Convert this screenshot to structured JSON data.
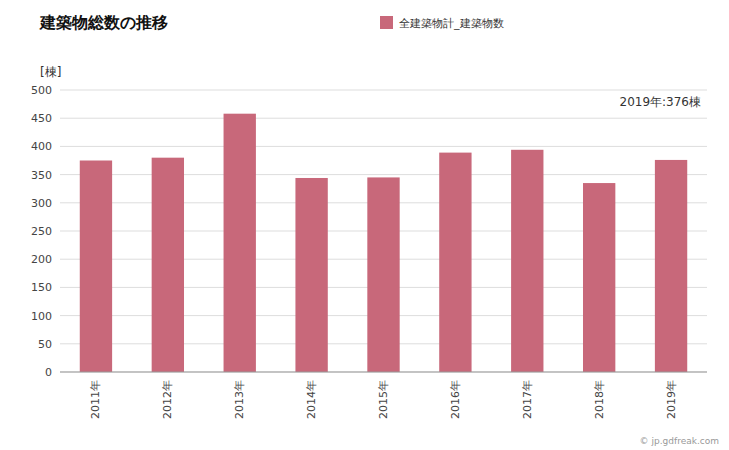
{
  "chart_data": {
    "type": "bar",
    "title": "建築物総数の推移",
    "ylabel": "[棟]",
    "categories": [
      "2011年",
      "2012年",
      "2013年",
      "2014年",
      "2015年",
      "2016年",
      "2017年",
      "2018年",
      "2019年"
    ],
    "series": [
      {
        "name": "全建築物計_建築物数",
        "color": "#c8687a",
        "values": [
          375,
          380,
          458,
          344,
          345,
          389,
          394,
          335,
          376
        ]
      }
    ],
    "ylim": [
      0,
      500
    ],
    "yticks": [
      0,
      50,
      100,
      150,
      200,
      250,
      300,
      350,
      400,
      450,
      500
    ],
    "grid": true,
    "legend": "top",
    "annotations": [
      "2019年:376棟",
      "© jp.gdfreak.com"
    ]
  }
}
